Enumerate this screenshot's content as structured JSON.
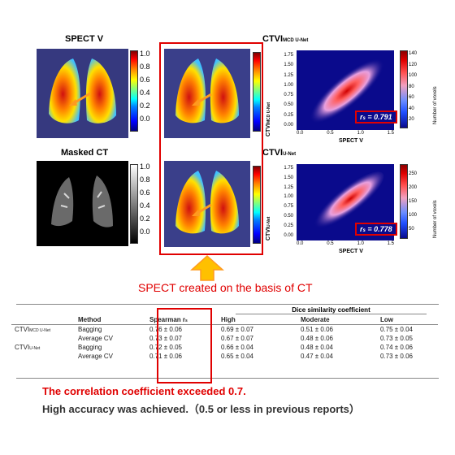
{
  "panels": {
    "spect_v_title": "SPECT V",
    "masked_ct_title": "Masked CT",
    "ctvi_mcd_title": "CTVI",
    "ctvi_mcd_sub": "MCD U-Net",
    "ctvi_unet_title": "CTVI",
    "ctvi_unet_sub": "U-Net"
  },
  "colorbar_ticks": [
    "1.0",
    "0.8",
    "0.6",
    "0.4",
    "0.2",
    "0.0"
  ],
  "scatter_top": {
    "ylabel": "CTVI",
    "ylabel_sub": "MCD U-Net",
    "xlabel": "SPECT V",
    "yticks": [
      "1.75",
      "1.50",
      "1.25",
      "1.00",
      "0.75",
      "0.50",
      "0.25",
      "0.00"
    ],
    "xticks": [
      "0.0",
      "0.5",
      "1.0",
      "1.5"
    ],
    "cb_label": "Number of voxels",
    "cb_ticks": [
      "140",
      "120",
      "100",
      "80",
      "60",
      "40",
      "20"
    ],
    "rs_label": "r",
    "rs_sub": "s",
    "rs_value": " = 0.791"
  },
  "scatter_bottom": {
    "ylabel": "CTVI",
    "ylabel_sub": "U-Net",
    "xlabel": "SPECT V",
    "yticks": [
      "1.75",
      "1.50",
      "1.25",
      "1.00",
      "0.75",
      "0.50",
      "0.25",
      "0.00"
    ],
    "xticks": [
      "0.0",
      "0.5",
      "1.0",
      "1.5"
    ],
    "cb_label": "Number of voxels",
    "cb_ticks": [
      "250",
      "200",
      "150",
      "100",
      "50"
    ],
    "rs_label": "r",
    "rs_sub": "s",
    "rs_value": " = 0.778"
  },
  "caption": "SPECT created on the basis of CT",
  "table": {
    "group_header": "Dice similarity coefficient",
    "headers": [
      "",
      "Method",
      "Spearman r",
      "High",
      "Moderate",
      "Low"
    ],
    "rows": [
      {
        "model": "CTVI",
        "model_sub": "MCD U-Net",
        "method": "Bagging",
        "spearman": "0.76 ± 0.06",
        "high": "0.69 ± 0.07",
        "moderate": "0.51 ± 0.06",
        "low": "0.75 ± 0.04"
      },
      {
        "model": "",
        "model_sub": "",
        "method": "Average CV",
        "spearman": "0.73 ± 0.07",
        "high": "0.67 ± 0.07",
        "moderate": "0.48 ± 0.06",
        "low": "0.73 ± 0.05"
      },
      {
        "model": "CTVI",
        "model_sub": "U-Net",
        "method": "Bagging",
        "spearman": "0.72 ± 0.05",
        "high": "0.66 ± 0.04",
        "moderate": "0.48 ± 0.04",
        "low": "0.74 ± 0.06"
      },
      {
        "model": "",
        "model_sub": "",
        "method": "Average CV",
        "spearman": "0.71 ± 0.06",
        "high": "0.65 ± 0.04",
        "moderate": "0.47 ± 0.04",
        "low": "0.73 ± 0.06"
      }
    ]
  },
  "notes": {
    "line1": "The correlation coefficient exceeded 0.7.",
    "line2": "High accuracy was achieved.（0.5 or less in previous  reports）"
  },
  "colors": {
    "highlight_red": "#e00000",
    "arrow_orange": "#ff9a1f",
    "arrow_fill": "#ffc000"
  }
}
